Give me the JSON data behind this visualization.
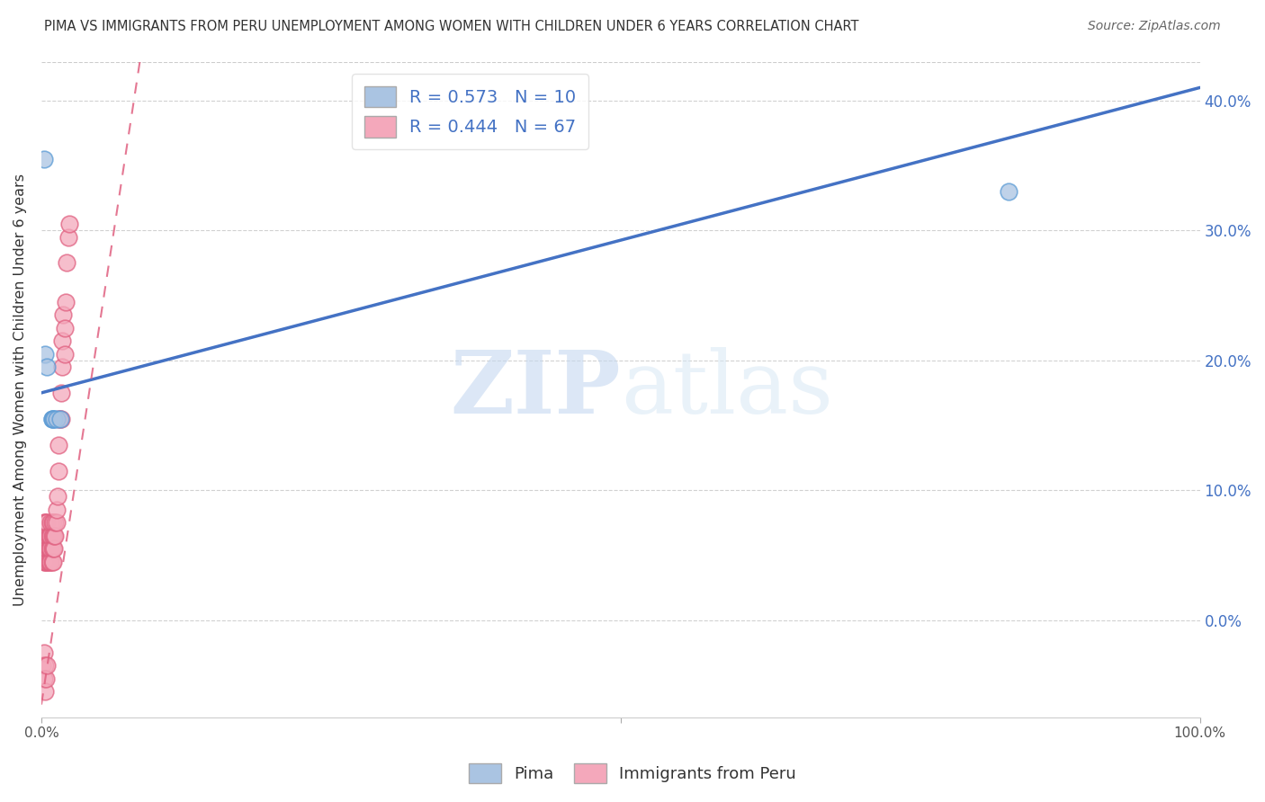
{
  "title": "PIMA VS IMMIGRANTS FROM PERU UNEMPLOYMENT AMONG WOMEN WITH CHILDREN UNDER 6 YEARS CORRELATION CHART",
  "source": "Source: ZipAtlas.com",
  "ylabel": "Unemployment Among Women with Children Under 6 years",
  "pima_R": 0.573,
  "pima_N": 10,
  "peru_R": 0.444,
  "peru_N": 67,
  "pima_color": "#aac4e2",
  "peru_color": "#f4a8bb",
  "pima_edge_color": "#5b9bd5",
  "peru_edge_color": "#e06080",
  "pima_line_color": "#4472c4",
  "peru_line_color": "#e06080",
  "legend_label_pima": "Pima",
  "legend_label_peru": "Immigrants from Peru",
  "pima_scatter_x": [
    0.002,
    0.003,
    0.005,
    0.009,
    0.009,
    0.01,
    0.011,
    0.013,
    0.016,
    0.835
  ],
  "pima_scatter_y": [
    0.355,
    0.205,
    0.195,
    0.155,
    0.155,
    0.155,
    0.155,
    0.155,
    0.155,
    0.33
  ],
  "peru_scatter_x": [
    0.001,
    0.001,
    0.001,
    0.002,
    0.002,
    0.002,
    0.002,
    0.003,
    0.003,
    0.003,
    0.004,
    0.004,
    0.004,
    0.004,
    0.005,
    0.005,
    0.005,
    0.005,
    0.006,
    0.006,
    0.006,
    0.007,
    0.007,
    0.007,
    0.007,
    0.007,
    0.008,
    0.008,
    0.008,
    0.008,
    0.009,
    0.009,
    0.009,
    0.009,
    0.01,
    0.01,
    0.01,
    0.01,
    0.011,
    0.011,
    0.012,
    0.012,
    0.013,
    0.013,
    0.014,
    0.015,
    0.015,
    0.015,
    0.016,
    0.017,
    0.017,
    0.018,
    0.018,
    0.019,
    0.02,
    0.02,
    0.021,
    0.022,
    0.023,
    0.024,
    0.001,
    0.002,
    0.003,
    0.002,
    0.003,
    0.004,
    0.005
  ],
  "peru_scatter_y": [
    0.065,
    0.055,
    0.055,
    0.045,
    0.055,
    0.065,
    0.075,
    0.045,
    0.055,
    0.075,
    0.045,
    0.055,
    0.065,
    0.075,
    0.045,
    0.055,
    0.065,
    0.075,
    0.045,
    0.055,
    0.065,
    0.045,
    0.055,
    0.065,
    0.055,
    0.065,
    0.045,
    0.055,
    0.065,
    0.075,
    0.045,
    0.055,
    0.065,
    0.075,
    0.045,
    0.055,
    0.065,
    0.075,
    0.055,
    0.065,
    0.065,
    0.075,
    0.075,
    0.085,
    0.095,
    0.115,
    0.135,
    0.155,
    0.155,
    0.155,
    0.175,
    0.195,
    0.215,
    0.235,
    0.205,
    0.225,
    0.245,
    0.275,
    0.295,
    0.305,
    -0.035,
    -0.025,
    -0.035,
    -0.045,
    -0.055,
    -0.045,
    -0.035
  ],
  "xlim": [
    0.0,
    1.0
  ],
  "ylim": [
    -0.075,
    0.43
  ],
  "right_yticks": [
    0.0,
    0.1,
    0.2,
    0.3,
    0.4
  ],
  "right_yticklabels": [
    "0.0%",
    "10.0%",
    "20.0%",
    "30.0%",
    "40.0%"
  ],
  "xtick_positions": [
    0.0,
    0.5,
    1.0
  ],
  "xticklabels_left": "0.0%",
  "xticklabels_right": "100.0%",
  "right_ytick_color": "#4472c4",
  "watermark_zip": "ZIP",
  "watermark_atlas": "atlas",
  "background_color": "#ffffff",
  "grid_color": "#cccccc",
  "pima_line_x": [
    0.0,
    1.0
  ],
  "pima_line_y": [
    0.175,
    0.41
  ],
  "peru_line_x": [
    0.0,
    0.085
  ],
  "peru_line_y": [
    -0.065,
    0.43
  ]
}
